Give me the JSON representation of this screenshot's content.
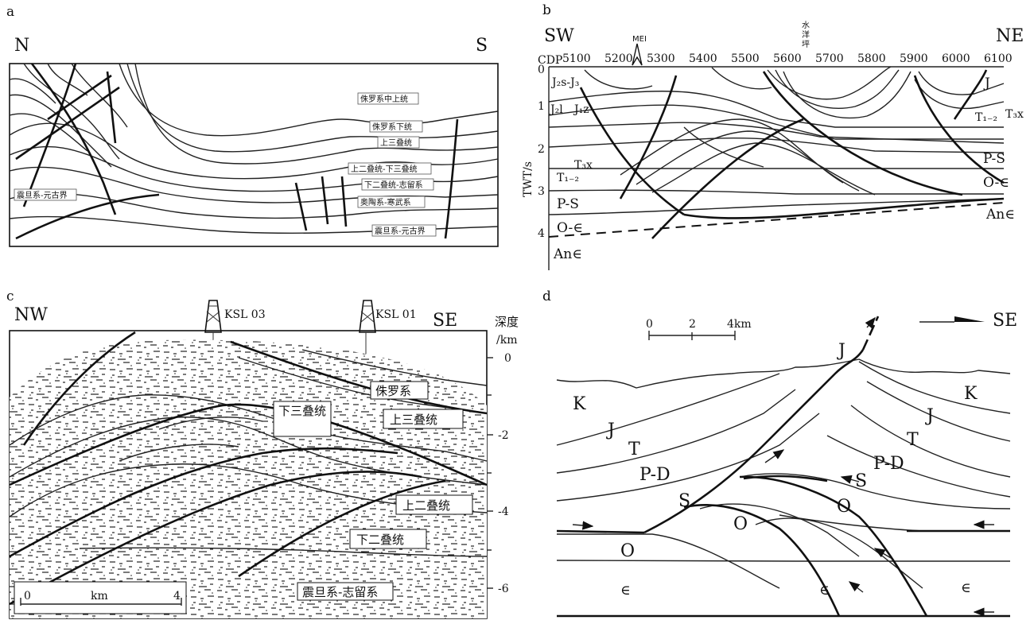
{
  "panel_a": {
    "letter": "a",
    "dir_left": "N",
    "dir_right": "S",
    "units": {
      "jur_mid_up": "侏罗系中上统",
      "jur_low": "侏罗系下统",
      "tri_up": "上三叠统",
      "perm_tri": "上二叠统-下三叠统",
      "perm_sil": "下二叠统-志留系",
      "ord_camb": "奥陶系-寒武系",
      "sinian_right": "震旦系-元古界",
      "sinian_left": "震旦系-元古界"
    }
  },
  "panel_b": {
    "letter": "b",
    "dir_left": "SW",
    "dir_right": "NE",
    "well": "MEI",
    "place": [
      "水",
      "洋",
      "坪"
    ],
    "cdp_label": "CDP",
    "cdp_ticks": [
      "5100",
      "5200",
      "5300",
      "5400",
      "5500",
      "5600",
      "5700",
      "5800",
      "5900",
      "6000",
      "6100"
    ],
    "y_label": "TWT/s",
    "y_ticks": [
      "0",
      "1",
      "2",
      "3",
      "4"
    ],
    "units": {
      "j2s_j3": "J₂s-J₃",
      "j2l": "J₂l",
      "j1z": "J₁z",
      "t3x_left": "T₃x",
      "t12_left": "T₁₋₂",
      "ps_left": "P-S",
      "oe_left": "O-∈",
      "ane_left": "An∈",
      "j_right": "J",
      "t12_right": "T₁₋₂",
      "t3x_right": "T₃x",
      "ps_right": "P-S",
      "oe_right": "O-∈",
      "ane_right": "An∈"
    }
  },
  "panel_c": {
    "letter": "c",
    "dir_left": "NW",
    "dir_right": "SE",
    "well_1": "KSL 03",
    "well_2": "KSL 01",
    "depth_label_1": "深度",
    "depth_label_2": "/km",
    "depth_ticks": [
      "0",
      "-2",
      "-4",
      "-6"
    ],
    "scale_left": "0",
    "scale_mid": "km",
    "scale_right": "4",
    "units": {
      "jur": "侏罗系",
      "tri_low": "下三叠统",
      "tri_up": "上三叠统",
      "perm_up": "上二叠统",
      "perm_low": "下二叠统",
      "sin_sil": "震旦系-志留系"
    }
  },
  "panel_d": {
    "letter": "d",
    "direction": "SE",
    "scale_0": "0",
    "scale_2": "2",
    "scale_4": "4km",
    "units": {
      "k_left": "K",
      "j_left": "J",
      "t_left": "T",
      "pd_left": "P-D",
      "s_left": "S",
      "o_left": "O",
      "e_left": "∈",
      "j_top": "J",
      "o_mid": "O",
      "e_mid": "∈",
      "k_right": "K",
      "j_right": "J",
      "t_right": "T",
      "pd_right": "P-D",
      "s_right": "S",
      "o_right": "O",
      "e_right": "∈"
    }
  }
}
